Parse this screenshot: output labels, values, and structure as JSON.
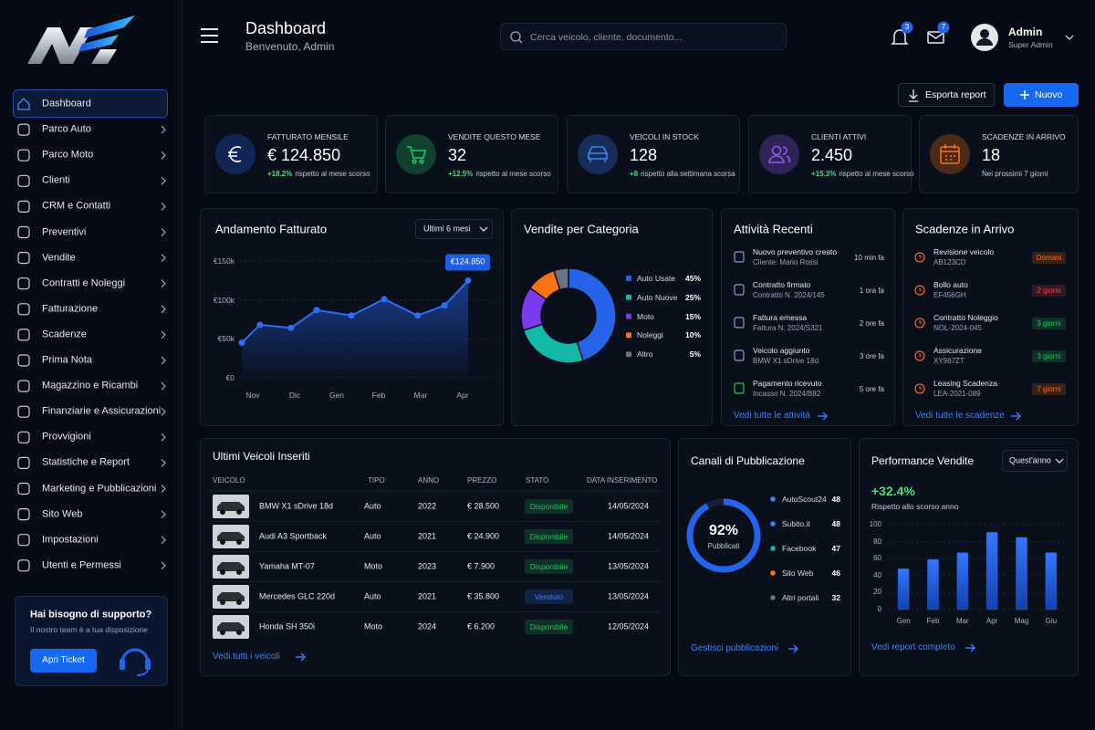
{
  "sidebar": {
    "menu": [
      "Dashboard",
      "Parco Auto",
      "Parco Moto",
      "Clienti",
      "CRM e Contatti",
      "Preventivi",
      "Vendite",
      "Contratti e Noleggi",
      "Fatturazione",
      "Scadenze",
      "Prima Nota",
      "Magazzino e Ricambi",
      "Finanziarie e Assicurazioni",
      "Provvigioni",
      "Statistiche e Report",
      "Marketing e Pubblicazioni",
      "Sito Web",
      "Impostazioni",
      "Utenti e Permessi"
    ],
    "support": {
      "title": "Hai bisogno di supporto?",
      "text": "Il nostro team è a tua disposizione",
      "button": "Apri Ticket"
    }
  },
  "header": {
    "title": "Dashboard",
    "subtitle": "Benvenuto, Admin",
    "search_placeholder": "Cerca veicolo, cliente, documento...",
    "notifications": 3,
    "messages": 7,
    "user": "Admin",
    "role": "Super Admin"
  },
  "actions": [
    "Esporta report",
    "Nuovo"
  ],
  "kpis": [
    {
      "label": "FATTURATO MENSILE",
      "value": "€ 124.850",
      "change": "+18.2%",
      "note": "rispetto al mese scorso",
      "color": "#2563eb"
    },
    {
      "label": "VENDITE QUESTO MESE",
      "value": "32",
      "change": "+12.5%",
      "note": "rispetto al mese scorso",
      "color": "#22c55e"
    },
    {
      "label": "VEICOLI IN STOCK",
      "value": "128",
      "change": "+8",
      "note": "rispetto alla settimana scorsa",
      "color": "#3b82f6"
    },
    {
      "label": "CLIENTI ATTIVI",
      "value": "2.450",
      "change": "+15.3%",
      "note": "rispetto al mese scorso",
      "color": "#8b5cf6"
    },
    {
      "label": "SCADENZE IN ARRIVO",
      "value": "18",
      "note": "Nei prossimi 7 giorni",
      "color": "#f97316"
    }
  ],
  "revenue_chart": {
    "type": "line",
    "title": "Andamento Fatturato",
    "period": "Ultimi 6 mesi",
    "x": [
      -0.26,
      0.17,
      0.91,
      1.52,
      2.35,
      3.13,
      3.93,
      4.57,
      5.13
    ],
    "values": [
      45000,
      68000,
      64000,
      87000,
      80000,
      101000,
      80000,
      93000,
      124850
    ],
    "value_labels": [
      null,
      null,
      null,
      null,
      null,
      null,
      null,
      null,
      "€124.850"
    ],
    "xlim": [
      -0.3,
      5.2
    ],
    "xticks": [
      {
        "value": 0,
        "label": "Nov"
      },
      {
        "value": 1,
        "label": "Dic"
      },
      {
        "value": 2,
        "label": "Gen"
      },
      {
        "value": 3,
        "label": "Feb"
      },
      {
        "value": 4,
        "label": "Mar"
      },
      {
        "value": 5,
        "label": "Apr"
      }
    ],
    "ylim": [
      0,
      150000
    ],
    "yticks": [
      {
        "value": 0,
        "label": "€0"
      },
      {
        "value": 50000,
        "label": "€50k"
      },
      {
        "value": 100000,
        "label": "€100k"
      },
      {
        "value": 150000,
        "label": "€150k"
      }
    ],
    "color": "#2f6df6",
    "grid": true
  },
  "category_chart": {
    "type": "pie",
    "title": "Vendite per Categoria",
    "categories": [
      "Auto Usate",
      "Auto Nuove",
      "Moto",
      "Noleggi",
      "Altro"
    ],
    "values": [
      45,
      25,
      15,
      10,
      5
    ],
    "value_labels": [
      "45%",
      "25%",
      "15%",
      "10%",
      "5%"
    ],
    "colors": [
      "#2563eb",
      "#14b8a6",
      "#7c3aed",
      "#f97316",
      "#6b7280"
    ]
  },
  "activities": {
    "title": "Attività Recenti",
    "items": [
      {
        "title": "Nuovo preventivo creato",
        "subtitle": "Cliente: Mario Rossi",
        "time": "10 min fa"
      },
      {
        "title": "Contratto firmato",
        "subtitle": "Contratto N. 2024/145",
        "time": "1 ora fa"
      },
      {
        "title": "Fattura emessa",
        "subtitle": "Fattura N. 2024/S321",
        "time": "2 ore fa"
      },
      {
        "title": "Veicolo aggiunto",
        "subtitle": "BMW X1 sDrive 18d",
        "time": "3 ore fa"
      },
      {
        "title": "Pagamento ricevuto",
        "subtitle": "Incasso N. 2024/B82",
        "time": "5 ore fa"
      }
    ],
    "link": "Vedi tutte le attività"
  },
  "deadlines": {
    "title": "Scadenze in Arrivo",
    "items": [
      {
        "title": "Revisione veicolo",
        "code": "AB123CD",
        "badge": "Domani",
        "color": "#f97316"
      },
      {
        "title": "Bollo auto",
        "code": "EF456GH",
        "badge": "2 giorni",
        "color": "#ef4444"
      },
      {
        "title": "Contratto Noleggio",
        "code": "NOL-2024-045",
        "badge": "3 giorni",
        "color": "#22c55e"
      },
      {
        "title": "Assicurazione",
        "code": "XY987ZT",
        "badge": "3 giorni",
        "color": "#22c55e"
      },
      {
        "title": "Leasing Scadenza",
        "code": "LEA-2021-089",
        "badge": "7 giorni",
        "color": "#f97316"
      }
    ],
    "link": "Vedi tutte le scadenze"
  },
  "vehicles": {
    "title": "Ultimi Veicoli Inseriti",
    "columns": [
      "VEICOLO",
      "TIPO",
      "ANNO",
      "PREZZO",
      "STATO",
      "DATA INSERIMENTO"
    ],
    "rows": [
      {
        "vehicle": "BMW X1 sDrive 18d",
        "type": "Auto",
        "year": "2022",
        "price": "€ 28.500",
        "status": "Disponibile",
        "status_color": "#22c55e",
        "date": "14/05/2024"
      },
      {
        "vehicle": "Audi A3 Sportback",
        "type": "Auto",
        "year": "2021",
        "price": "€ 24.900",
        "status": "Disponibile",
        "status_color": "#22c55e",
        "date": "14/05/2024"
      },
      {
        "vehicle": "Yamaha MT-07",
        "type": "Moto",
        "year": "2023",
        "price": "€ 7.900",
        "status": "Disponibile",
        "status_color": "#22c55e",
        "date": "13/05/2024"
      },
      {
        "vehicle": "Mercedes GLC 220d",
        "type": "Auto",
        "year": "2021",
        "price": "€ 35.800",
        "status": "Venduto",
        "status_color": "#3b82f6",
        "date": "13/05/2024"
      },
      {
        "vehicle": "Honda SH 350i",
        "type": "Moto",
        "year": "2024",
        "price": "€ 6.200",
        "status": "Disponibile",
        "status_color": "#22c55e",
        "date": "12/05/2024"
      }
    ],
    "link": "Vedi tutti i veicoli"
  },
  "channels": {
    "title": "Canali di Pubblicazione",
    "gauge": {
      "value": 92,
      "label": "92%",
      "caption": "Pubblicati",
      "max": 100,
      "color": "#2563eb"
    },
    "items": [
      {
        "name": "AutoScout24",
        "value": 48,
        "color": "#3b82f6"
      },
      {
        "name": "Subito.it",
        "value": 48,
        "color": "#3b82f6"
      },
      {
        "name": "Facebook",
        "value": 47,
        "color": "#14b8a6"
      },
      {
        "name": "Sito Web",
        "value": 46,
        "color": "#f97316"
      },
      {
        "name": "Altri portali",
        "value": 32,
        "color": "#6b7280"
      }
    ],
    "link": "Gestisci pubblicazioni"
  },
  "performance": {
    "type": "bar",
    "title": "Performance Vendite",
    "period": "Quest'anno",
    "change": "+32.4%",
    "note": "Rispetto allo scorso anno",
    "categories": [
      "Gen",
      "Feb",
      "Mar",
      "Apr",
      "Mag",
      "Giu"
    ],
    "values": [
      48,
      59,
      67,
      91,
      85,
      67
    ],
    "ylim": [
      0,
      100
    ],
    "yticks": [
      0,
      20,
      40,
      60,
      80,
      100
    ],
    "grid": true,
    "color": "#2f6df6",
    "link": "Vedi report completo"
  }
}
